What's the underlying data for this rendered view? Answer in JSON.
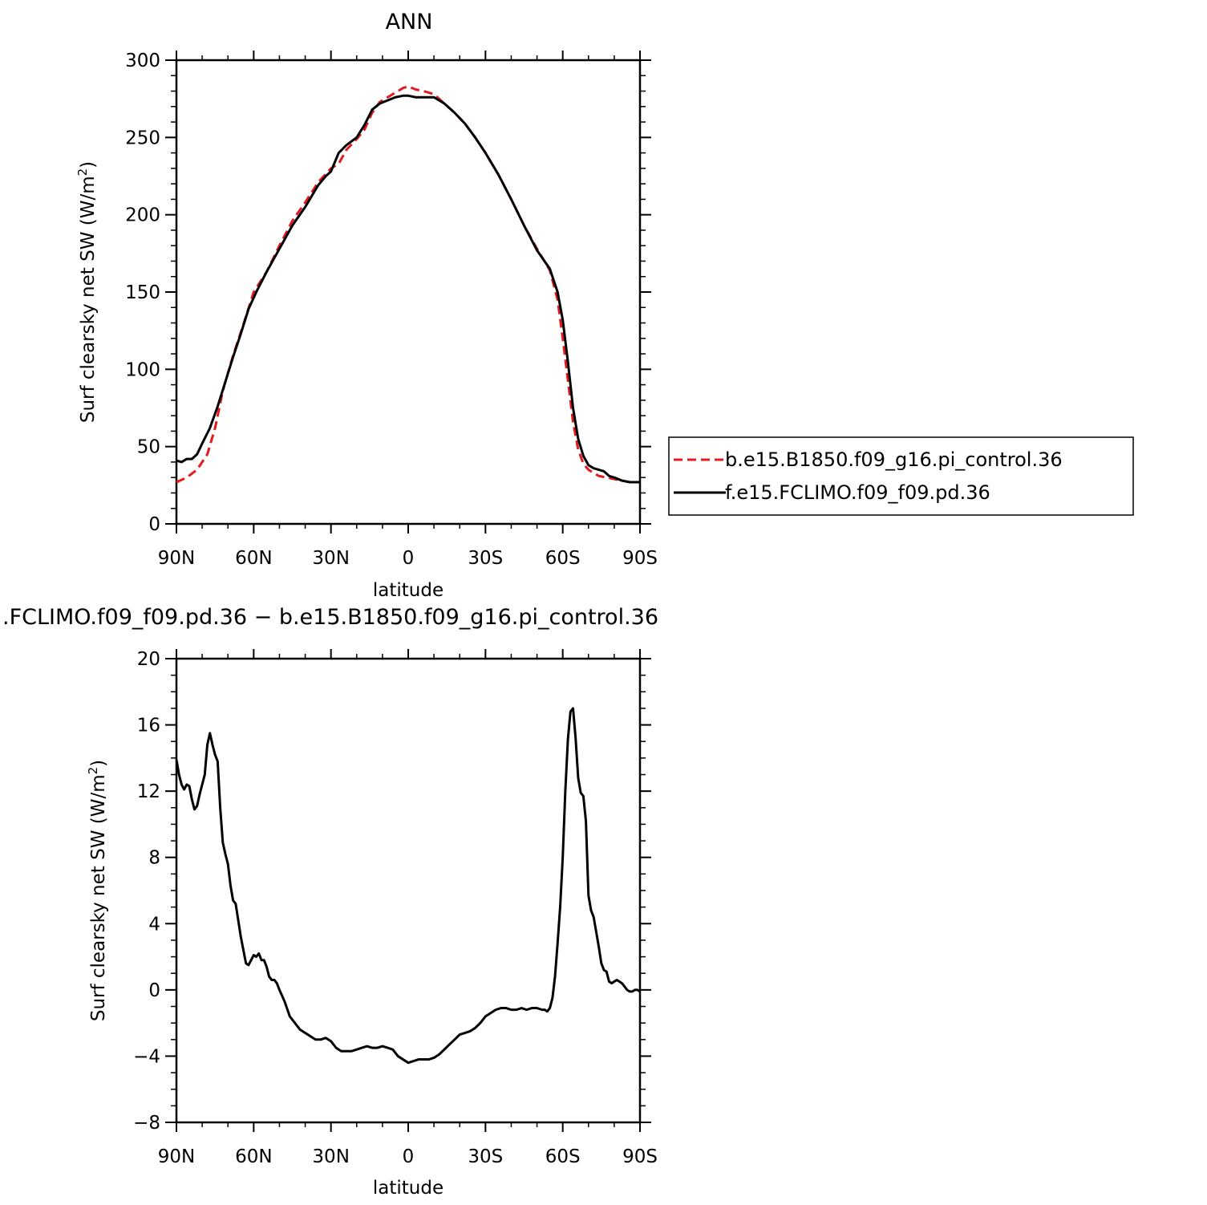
{
  "chart_data": [
    {
      "type": "line",
      "title": "ANN",
      "xlabel": "latitude",
      "ylabel": "Surf clearsky net SW (W/m",
      "ylabel_sup": "2",
      "ylabel_tail": ")",
      "xlim": [
        90,
        -90
      ],
      "ylim": [
        0,
        300
      ],
      "x_ticks": [
        90,
        60,
        30,
        0,
        -30,
        -60,
        -90
      ],
      "x_tick_labels": [
        "90N",
        "60N",
        "30N",
        "0",
        "30S",
        "60S",
        "90S"
      ],
      "y_ticks": [
        0,
        50,
        100,
        150,
        200,
        250,
        300
      ],
      "y_tick_labels": [
        "0",
        "50",
        "100",
        "150",
        "200",
        "250",
        "300"
      ],
      "legend_position": "right",
      "series": [
        {
          "name": "b.e15.B1850.f09_g16.pi_control.36",
          "color": "#e41a1c",
          "dash": "dashed",
          "x": [
            90,
            86,
            82,
            78,
            75,
            72,
            68,
            64,
            60,
            55,
            50,
            45,
            40,
            35,
            30,
            27,
            24,
            20,
            17,
            14,
            11,
            8,
            5,
            2,
            0,
            -3,
            -6,
            -10,
            -14,
            -18,
            -22,
            -26,
            -30,
            -35,
            -40,
            -45,
            -50,
            -55,
            -58,
            -60,
            -62,
            -64,
            -66,
            -68,
            -70,
            -72,
            -74,
            -77,
            -80,
            -83,
            -86,
            -90
          ],
          "values": [
            27,
            30,
            35,
            45,
            62,
            86,
            109,
            129,
            150,
            163,
            180,
            196,
            208,
            221,
            230,
            233,
            242,
            249,
            255,
            266,
            273,
            276,
            279,
            282,
            283,
            281,
            280,
            278,
            272,
            266,
            259,
            250,
            240,
            226,
            210,
            193,
            178,
            164,
            145,
            120,
            93,
            66,
            48,
            39,
            35,
            33,
            31,
            30,
            29,
            28,
            27,
            27
          ]
        },
        {
          "name": "f.e15.FCLIMO.f09_f09.pd.36",
          "color": "#000000",
          "dash": "solid",
          "x": [
            90,
            88,
            86,
            84,
            82,
            80,
            77,
            74,
            71,
            68,
            65,
            62,
            59,
            55,
            50,
            45,
            40,
            35,
            32,
            30,
            27,
            24,
            20,
            17,
            14,
            11,
            8,
            5,
            2,
            0,
            -3,
            -6,
            -10,
            -14,
            -18,
            -22,
            -26,
            -30,
            -35,
            -40,
            -45,
            -50,
            -55,
            -58,
            -60,
            -62,
            -64,
            -66,
            -68,
            -70,
            -72,
            -74,
            -76,
            -78,
            -80,
            -83,
            -86,
            -90
          ],
          "values": [
            41,
            40,
            42,
            42,
            45,
            52,
            62,
            76,
            92,
            108,
            123,
            139,
            150,
            163,
            178,
            193,
            205,
            219,
            225,
            228,
            240,
            245,
            250,
            258,
            268,
            272,
            274,
            276,
            277,
            277,
            276,
            276,
            276,
            272,
            266,
            259,
            250,
            240,
            226,
            210,
            193,
            177,
            165,
            150,
            132,
            105,
            75,
            55,
            44,
            38,
            36,
            35,
            34,
            31,
            30,
            28,
            27,
            27
          ]
        }
      ]
    },
    {
      "type": "line",
      "title": ".FCLIMO.f09_f09.pd.36 − b.e15.B1850.f09_g16.pi_control.36",
      "xlabel": "latitude",
      "ylabel": "Surf clearsky net SW (W/m",
      "ylabel_sup": "2",
      "ylabel_tail": ")",
      "xlim": [
        90,
        -90
      ],
      "ylim": [
        -8,
        20
      ],
      "x_ticks": [
        90,
        60,
        30,
        0,
        -30,
        -60,
        -90
      ],
      "x_tick_labels": [
        "90N",
        "60N",
        "30N",
        "0",
        "30S",
        "60S",
        "90S"
      ],
      "y_ticks": [
        -8,
        -4,
        0,
        4,
        8,
        12,
        16,
        20
      ],
      "y_tick_labels": [
        "−8",
        "−4",
        "0",
        "4",
        "8",
        "12",
        "16",
        "20"
      ],
      "series": [
        {
          "color": "#000000",
          "x": [
            90,
            89,
            88,
            87,
            86,
            85,
            84,
            83,
            82,
            81,
            80,
            79,
            78,
            77,
            76,
            75,
            74,
            73,
            72,
            71,
            70,
            69,
            68,
            67,
            66,
            65,
            64,
            63,
            62,
            61,
            60,
            59,
            58,
            57,
            56,
            55,
            54,
            53,
            52,
            51,
            50,
            48,
            46,
            44,
            42,
            40,
            38,
            36,
            34,
            32,
            30,
            28,
            26,
            24,
            22,
            20,
            18,
            16,
            14,
            12,
            10,
            8,
            6,
            4,
            2,
            0,
            -2,
            -4,
            -6,
            -8,
            -10,
            -12,
            -14,
            -16,
            -18,
            -20,
            -22,
            -24,
            -26,
            -28,
            -30,
            -32,
            -34,
            -36,
            -38,
            -40,
            -42,
            -44,
            -46,
            -48,
            -50,
            -52,
            -53,
            -54,
            -55,
            -56,
            -57,
            -58,
            -59,
            -60,
            -61,
            -62,
            -63,
            -64,
            -65,
            -66,
            -67,
            -68,
            -69,
            -70,
            -71,
            -72,
            -73,
            -74,
            -75,
            -76,
            -77,
            -78,
            -79,
            -80,
            -81,
            -82,
            -83,
            -84,
            -85,
            -86,
            -87,
            -88,
            -89,
            -90
          ],
          "values": [
            13.9,
            13.0,
            12.4,
            12.1,
            12.4,
            12.3,
            11.5,
            10.9,
            11.1,
            11.8,
            12.4,
            13.0,
            14.8,
            15.5,
            14.8,
            14.2,
            13.8,
            11.0,
            8.9,
            8.2,
            7.6,
            6.3,
            5.4,
            5.2,
            4.2,
            3.2,
            2.4,
            1.6,
            1.5,
            1.8,
            2.1,
            2.0,
            2.2,
            1.8,
            1.8,
            1.4,
            0.8,
            0.6,
            0.6,
            0.4,
            0.0,
            -0.7,
            -1.6,
            -2.0,
            -2.4,
            -2.6,
            -2.8,
            -3.0,
            -3.0,
            -2.9,
            -3.1,
            -3.5,
            -3.7,
            -3.7,
            -3.7,
            -3.6,
            -3.5,
            -3.4,
            -3.5,
            -3.5,
            -3.4,
            -3.5,
            -3.6,
            -4.0,
            -4.2,
            -4.4,
            -4.3,
            -4.2,
            -4.2,
            -4.2,
            -4.1,
            -3.9,
            -3.6,
            -3.3,
            -3.0,
            -2.7,
            -2.6,
            -2.5,
            -2.3,
            -2.0,
            -1.6,
            -1.4,
            -1.2,
            -1.1,
            -1.1,
            -1.2,
            -1.2,
            -1.1,
            -1.2,
            -1.1,
            -1.1,
            -1.2,
            -1.2,
            -1.3,
            -1.1,
            -0.5,
            0.8,
            2.8,
            5.0,
            8.0,
            12.0,
            15.1,
            16.8,
            17.0,
            15.2,
            12.8,
            11.9,
            11.7,
            10.2,
            5.7,
            4.8,
            4.4,
            3.5,
            2.6,
            1.6,
            1.2,
            1.1,
            0.5,
            0.4,
            0.5,
            0.6,
            0.5,
            0.4,
            0.2,
            0.0,
            -0.1,
            -0.1,
            0.0,
            0.0,
            -0.1
          ]
        }
      ]
    }
  ]
}
